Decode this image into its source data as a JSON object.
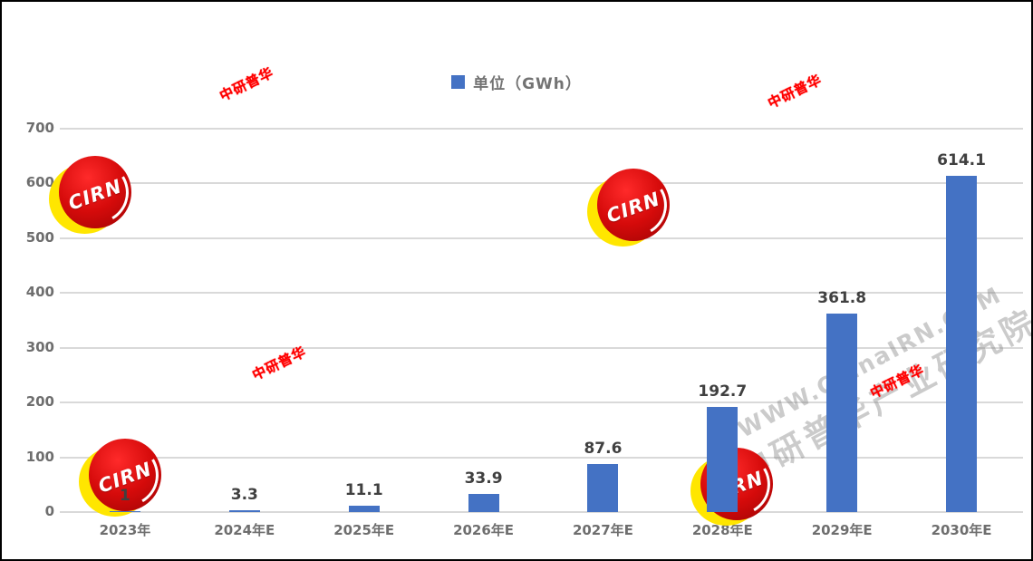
{
  "chart_data": {
    "type": "bar",
    "title": "",
    "legend": "单位（GWh）",
    "categories": [
      "2023年",
      "2024年E",
      "2025年E",
      "2026年E",
      "2027年E",
      "2028年E",
      "2029年E",
      "2030年E"
    ],
    "values": [
      1,
      3.3,
      11.1,
      33.9,
      87.6,
      192.7,
      361.8,
      614.1
    ],
    "labels": [
      "1",
      "3.3",
      "11.1",
      "33.9",
      "87.6",
      "192.7",
      "361.8",
      "614.1"
    ],
    "y_ticks": [
      0,
      100,
      200,
      300,
      400,
      500,
      600,
      700
    ],
    "ylim": [
      0,
      700
    ],
    "bar_color": "#4472C4",
    "gridlines": true,
    "legend_position": "top",
    "data_labels": true
  },
  "watermarks": {
    "logo_text": "CIRN",
    "stamp_text": "中研普华",
    "diagonal_line1": "WWW.ChinaIRN.COM",
    "diagonal_line2": "中研普华产业研究院"
  },
  "colors": {
    "bar": "#4472C4",
    "gridline": "#D9D9D9",
    "axis_text": "#6E6E6E",
    "data_label_text": "#404040",
    "stamp_red": "#FF0000",
    "logo_red": "#D60B0B",
    "logo_yellow": "#FFE600"
  }
}
